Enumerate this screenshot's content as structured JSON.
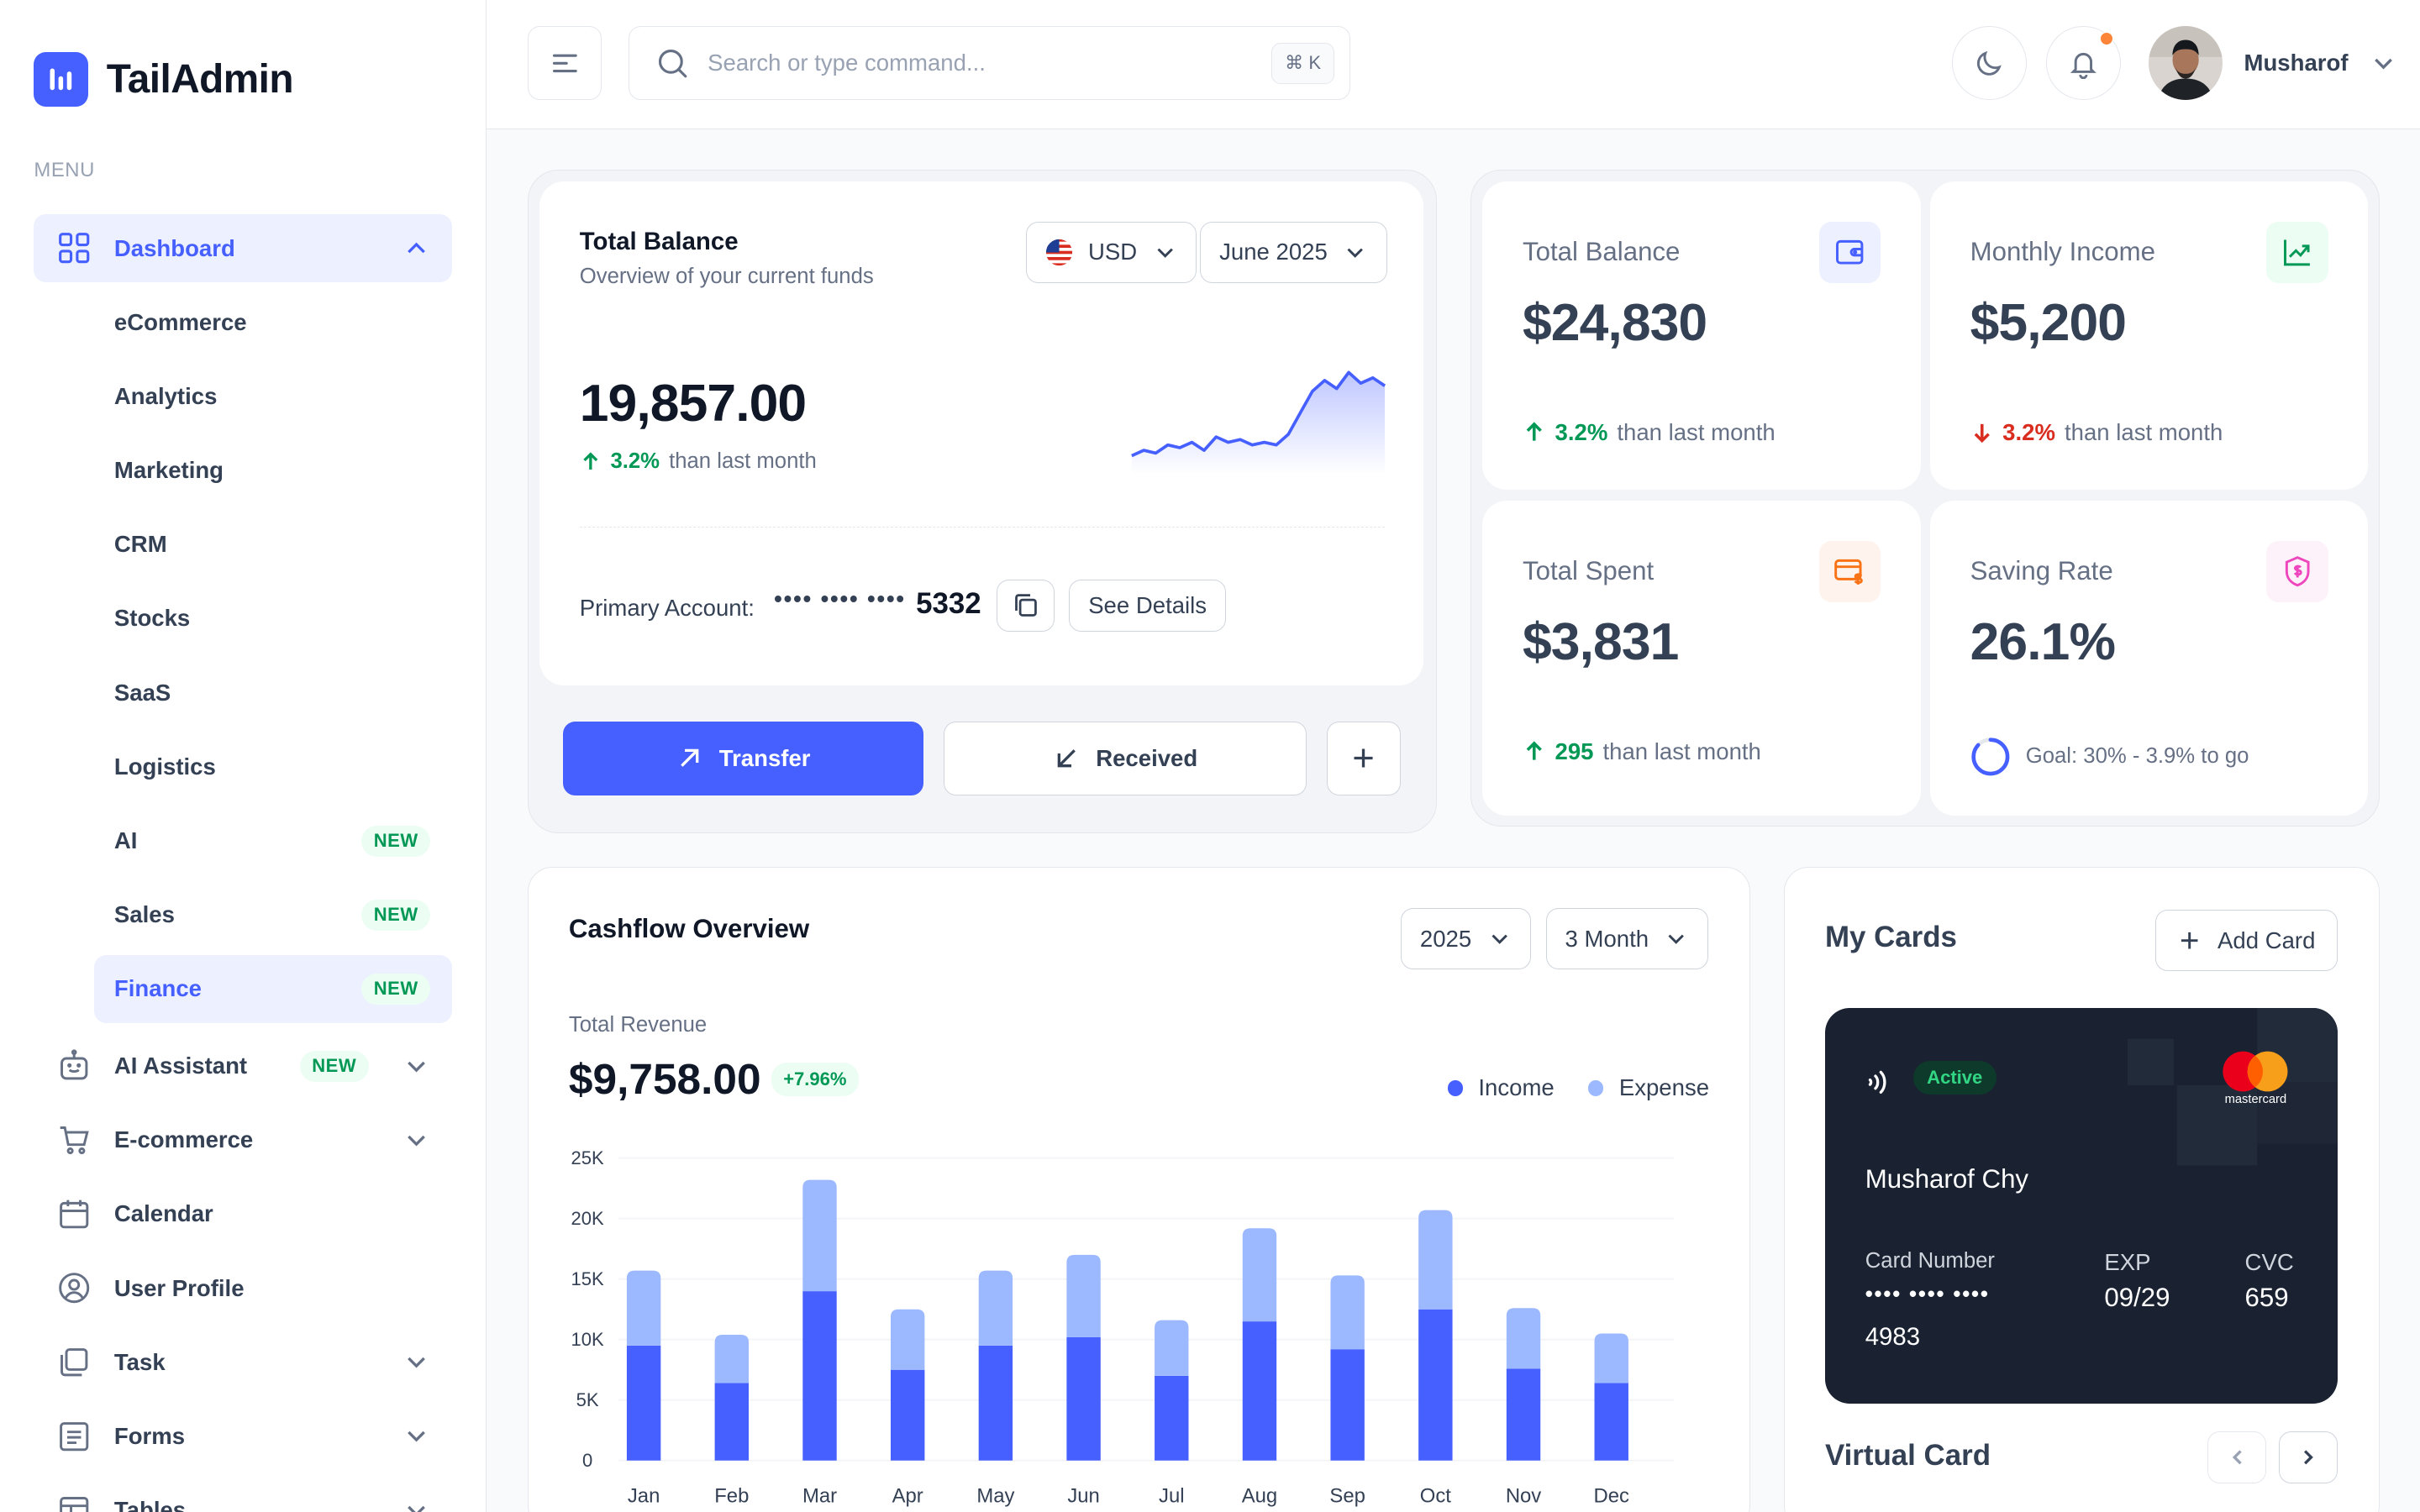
{
  "app": {
    "name": "TailAdmin"
  },
  "sidebar": {
    "menu_heading": "MENU",
    "dashboard_label": "Dashboard",
    "sub_items": [
      {
        "label": "eCommerce",
        "badge": ""
      },
      {
        "label": "Analytics",
        "badge": ""
      },
      {
        "label": "Marketing",
        "badge": ""
      },
      {
        "label": "CRM",
        "badge": ""
      },
      {
        "label": "Stocks",
        "badge": ""
      },
      {
        "label": "SaaS",
        "badge": ""
      },
      {
        "label": "Logistics",
        "badge": ""
      },
      {
        "label": "AI",
        "badge": "NEW"
      },
      {
        "label": "Sales",
        "badge": "NEW"
      },
      {
        "label": "Finance",
        "badge": "NEW"
      }
    ],
    "items": [
      {
        "label": "AI Assistant",
        "badge": "NEW"
      },
      {
        "label": "E-commerce"
      },
      {
        "label": "Calendar"
      },
      {
        "label": "User Profile"
      },
      {
        "label": "Task"
      },
      {
        "label": "Forms"
      },
      {
        "label": "Tables"
      }
    ]
  },
  "header": {
    "search_placeholder": "Search or type command...",
    "shortcut": "⌘ K",
    "user_name": "Musharof"
  },
  "balance_card": {
    "title": "Total Balance",
    "subtitle": "Overview of your current funds",
    "currency": "USD",
    "period": "June 2025",
    "amount": "19,857.00",
    "change": "3.2%",
    "change_text": "than last month",
    "primary_label": "Primary Account:",
    "account_mask": "•••• •••• ••••",
    "account_last": "5332",
    "see_details": "See Details",
    "transfer": "Transfer",
    "received": "Received",
    "sparkline": [
      4,
      6,
      5,
      8,
      7,
      9,
      6,
      11,
      9,
      10,
      8,
      9,
      8,
      12,
      20,
      28,
      32,
      29,
      35,
      31,
      33,
      30
    ]
  },
  "stats": [
    {
      "title": "Total Balance",
      "value": "$24,830",
      "change": "3.2%",
      "direction": "up",
      "text": "than last month",
      "icon": "wallet-icon",
      "color": "#465fff",
      "bg": "#ecf0ff"
    },
    {
      "title": "Monthly Income",
      "value": "$5,200",
      "change": "3.2%",
      "direction": "down",
      "text": "than last month",
      "icon": "chart-up-icon",
      "color": "#039855",
      "bg": "#ecfdf3"
    },
    {
      "title": "Total Spent",
      "value": "$3,831",
      "change": "295",
      "direction": "up",
      "text": "than last month",
      "icon": "card-dollar-icon",
      "color": "#f97316",
      "bg": "#fff4ed"
    },
    {
      "title": "Saving Rate",
      "value": "26.1%",
      "goal": "Goal: 30% - 3.9% to go",
      "goal_progress": 0.87,
      "icon": "shield-dollar-icon",
      "color": "#ee46bc",
      "bg": "#fdf2fa"
    }
  ],
  "cashflow": {
    "title": "Cashflow Overview",
    "year": "2025",
    "range": "3 Month",
    "revenue_label": "Total Revenue",
    "revenue": "$9,758.00",
    "revenue_change": "+7.96%"
  },
  "chart_data": {
    "type": "bar",
    "stacked": true,
    "categories": [
      "Jan",
      "Feb",
      "Mar",
      "Apr",
      "May",
      "Jun",
      "Jul",
      "Aug",
      "Sep",
      "Oct",
      "Nov",
      "Dec"
    ],
    "series": [
      {
        "name": "Income",
        "color": "#465fff",
        "values": [
          9500,
          6400,
          14000,
          7500,
          9500,
          10200,
          7000,
          11500,
          9200,
          12500,
          7600,
          6400
        ]
      },
      {
        "name": "Expense",
        "color": "#9cb9ff",
        "values": [
          6200,
          4000,
          9200,
          5000,
          6200,
          6800,
          4600,
          7700,
          6100,
          8200,
          5000,
          4100
        ]
      }
    ],
    "y_ticks": [
      "0",
      "5K",
      "10K",
      "15K",
      "20K",
      "25K"
    ],
    "ylim": [
      0,
      25000
    ],
    "grid": true,
    "legend": "top-right"
  },
  "my_cards": {
    "title": "My Cards",
    "add_card": "Add Card",
    "card": {
      "status": "Active",
      "holder": "Musharof Chy",
      "number_label": "Card Number",
      "number_mask": "•••• •••• ••••",
      "number_last": "4983",
      "exp_label": "EXP",
      "exp": "09/29",
      "cvc_label": "CVC",
      "cvc": "659",
      "brand": "mastercard"
    },
    "virtual_title": "Virtual Card"
  }
}
